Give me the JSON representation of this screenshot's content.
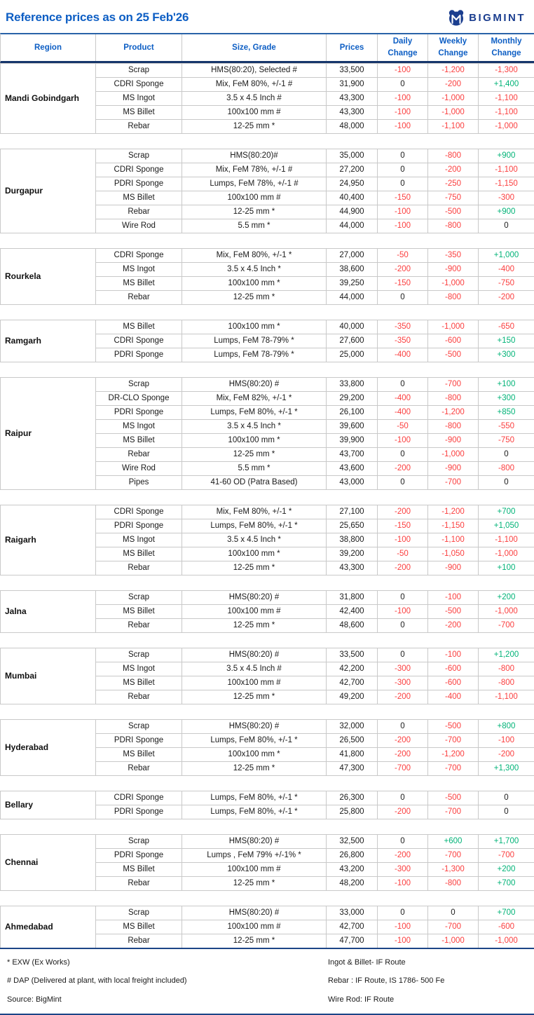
{
  "header": {
    "title": "Reference prices as on 25 Feb'26",
    "brand": "BIGMINT"
  },
  "colors": {
    "accent_blue": "#0d5ec4",
    "brand_navy": "#1b3e8f",
    "negative_red": "#fb3e3e",
    "positive_green": "#00b377",
    "thick_rule_blue": "#1c4587",
    "grid_line": "#c9c9c9"
  },
  "table": {
    "columns": [
      "Region",
      "Product",
      "Size, Grade",
      "Prices",
      "Daily Change",
      "Weekly Change",
      "Monthly Change"
    ],
    "regions": [
      {
        "name": "Mandi Gobindgarh",
        "rows": [
          {
            "product": "Scrap",
            "size": "HMS(80:20), Selected #",
            "price": "33,500",
            "daily": "-100",
            "weekly": "-1,200",
            "monthly": "-1,300"
          },
          {
            "product": "CDRI Sponge",
            "size": "Mix, FeM 80%, +/-1 #",
            "price": "31,900",
            "daily": "0",
            "weekly": "-200",
            "monthly": "+1,400"
          },
          {
            "product": "MS Ingot",
            "size": "3.5 x 4.5 Inch #",
            "price": "43,300",
            "daily": "-100",
            "weekly": "-1,000",
            "monthly": "-1,100"
          },
          {
            "product": "MS Billet",
            "size": "100x100 mm #",
            "price": "43,300",
            "daily": "-100",
            "weekly": "-1,000",
            "monthly": "-1,100"
          },
          {
            "product": "Rebar",
            "size": "12-25 mm *",
            "price": "48,000",
            "daily": "-100",
            "weekly": "-1,100",
            "monthly": "-1,000"
          }
        ]
      },
      {
        "name": "Durgapur",
        "rows": [
          {
            "product": "Scrap",
            "size": "HMS(80:20)#",
            "price": "35,000",
            "daily": "0",
            "weekly": "-800",
            "monthly": "+900"
          },
          {
            "product": "CDRI Sponge",
            "size": "Mix, FeM 78%, +/-1 #",
            "price": "27,200",
            "daily": "0",
            "weekly": "-200",
            "monthly": "-1,100"
          },
          {
            "product": "PDRI Sponge",
            "size": "Lumps, FeM 78%, +/-1 #",
            "price": "24,950",
            "daily": "0",
            "weekly": "-250",
            "monthly": "-1,150"
          },
          {
            "product": "MS Billet",
            "size": "100x100 mm #",
            "price": "40,400",
            "daily": "-150",
            "weekly": "-750",
            "monthly": "-300"
          },
          {
            "product": "Rebar",
            "size": "12-25 mm *",
            "price": "44,900",
            "daily": "-100",
            "weekly": "-500",
            "monthly": "+900"
          },
          {
            "product": "Wire Rod",
            "size": "5.5 mm *",
            "price": "44,000",
            "daily": "-100",
            "weekly": "-800",
            "monthly": "0"
          }
        ]
      },
      {
        "name": "Rourkela",
        "rows": [
          {
            "product": "CDRI Sponge",
            "size": "Mix, FeM 80%, +/-1 *",
            "price": "27,000",
            "daily": "-50",
            "weekly": "-350",
            "monthly": "+1,000"
          },
          {
            "product": "MS Ingot",
            "size": "3.5 x 4.5 Inch *",
            "price": "38,600",
            "daily": "-200",
            "weekly": "-900",
            "monthly": "-400"
          },
          {
            "product": "MS Billet",
            "size": "100x100 mm *",
            "price": "39,250",
            "daily": "-150",
            "weekly": "-1,000",
            "monthly": "-750"
          },
          {
            "product": "Rebar",
            "size": "12-25 mm *",
            "price": "44,000",
            "daily": "0",
            "weekly": "-800",
            "monthly": "-200"
          }
        ]
      },
      {
        "name": "Ramgarh",
        "rows": [
          {
            "product": "MS Billet",
            "size": "100x100 mm *",
            "price": "40,000",
            "daily": "-350",
            "weekly": "-1,000",
            "monthly": "-650"
          },
          {
            "product": "CDRI Sponge",
            "size": "Lumps, FeM 78-79% *",
            "price": "27,600",
            "daily": "-350",
            "weekly": "-600",
            "monthly": "+150"
          },
          {
            "product": "PDRI Sponge",
            "size": "Lumps, FeM 78-79% *",
            "price": "25,000",
            "daily": "-400",
            "weekly": "-500",
            "monthly": "+300"
          }
        ]
      },
      {
        "name": "Raipur",
        "rows": [
          {
            "product": "Scrap",
            "size": "HMS(80:20) #",
            "price": "33,800",
            "daily": "0",
            "weekly": "-700",
            "monthly": "+100"
          },
          {
            "product": "DR-CLO Sponge",
            "size": "Mix, FeM 82%, +/-1 *",
            "price": "29,200",
            "daily": "-400",
            "weekly": "-800",
            "monthly": "+300"
          },
          {
            "product": "PDRI Sponge",
            "size": "Lumps, FeM 80%, +/-1 *",
            "price": "26,100",
            "daily": "-400",
            "weekly": "-1,200",
            "monthly": "+850"
          },
          {
            "product": "MS Ingot",
            "size": "3.5 x 4.5 Inch *",
            "price": "39,600",
            "daily": "-50",
            "weekly": "-800",
            "monthly": "-550"
          },
          {
            "product": "MS Billet",
            "size": "100x100 mm *",
            "price": "39,900",
            "daily": "-100",
            "weekly": "-900",
            "monthly": "-750"
          },
          {
            "product": "Rebar",
            "size": "12-25 mm *",
            "price": "43,700",
            "daily": "0",
            "weekly": "-1,000",
            "monthly": "0"
          },
          {
            "product": "Wire Rod",
            "size": "5.5 mm *",
            "price": "43,600",
            "daily": "-200",
            "weekly": "-900",
            "monthly": "-800"
          },
          {
            "product": "Pipes",
            "size": "41-60 OD (Patra Based)",
            "price": "43,000",
            "daily": "0",
            "weekly": "-700",
            "monthly": "0"
          }
        ]
      },
      {
        "name": "Raigarh",
        "rows": [
          {
            "product": "CDRI Sponge",
            "size": "Mix, FeM 80%, +/-1 *",
            "price": "27,100",
            "daily": "-200",
            "weekly": "-1,200",
            "monthly": "+700"
          },
          {
            "product": "PDRI Sponge",
            "size": "Lumps, FeM 80%, +/-1 *",
            "price": "25,650",
            "daily": "-150",
            "weekly": "-1,150",
            "monthly": "+1,050"
          },
          {
            "product": "MS Ingot",
            "size": "3.5 x 4.5 Inch *",
            "price": "38,800",
            "daily": "-100",
            "weekly": "-1,100",
            "monthly": "-1,100"
          },
          {
            "product": "MS Billet",
            "size": "100x100 mm *",
            "price": "39,200",
            "daily": "-50",
            "weekly": "-1,050",
            "monthly": "-1,000"
          },
          {
            "product": "Rebar",
            "size": "12-25 mm *",
            "price": "43,300",
            "daily": "-200",
            "weekly": "-900",
            "monthly": "+100"
          }
        ]
      },
      {
        "name": "Jalna",
        "rows": [
          {
            "product": "Scrap",
            "size": "HMS(80:20) #",
            "price": "31,800",
            "daily": "0",
            "weekly": "-100",
            "monthly": "+200"
          },
          {
            "product": "MS Billet",
            "size": "100x100 mm #",
            "price": "42,400",
            "daily": "-100",
            "weekly": "-500",
            "monthly": "-1,000"
          },
          {
            "product": "Rebar",
            "size": "12-25 mm *",
            "price": "48,600",
            "daily": "0",
            "weekly": "-200",
            "monthly": "-700"
          }
        ]
      },
      {
        "name": "Mumbai",
        "rows": [
          {
            "product": "Scrap",
            "size": "HMS(80:20) #",
            "price": "33,500",
            "daily": "0",
            "weekly": "-100",
            "monthly": "+1,200"
          },
          {
            "product": "MS Ingot",
            "size": "3.5 x 4.5 Inch #",
            "price": "42,200",
            "daily": "-300",
            "weekly": "-600",
            "monthly": "-800"
          },
          {
            "product": "MS Billet",
            "size": "100x100 mm #",
            "price": "42,700",
            "daily": "-300",
            "weekly": "-600",
            "monthly": "-800"
          },
          {
            "product": "Rebar",
            "size": "12-25 mm *",
            "price": "49,200",
            "daily": "-200",
            "weekly": "-400",
            "monthly": "-1,100"
          }
        ]
      },
      {
        "name": "Hyderabad",
        "rows": [
          {
            "product": "Scrap",
            "size": "HMS(80:20) #",
            "price": "32,000",
            "daily": "0",
            "weekly": "-500",
            "monthly": "+800"
          },
          {
            "product": "PDRI Sponge",
            "size": "Lumps, FeM 80%, +/-1 *",
            "price": "26,500",
            "daily": "-200",
            "weekly": "-700",
            "monthly": "-100"
          },
          {
            "product": "MS Billet",
            "size": "100x100 mm *",
            "price": "41,800",
            "daily": "-200",
            "weekly": "-1,200",
            "monthly": "-200"
          },
          {
            "product": "Rebar",
            "size": "12-25 mm *",
            "price": "47,300",
            "daily": "-700",
            "weekly": "-700",
            "monthly": "+1,300"
          }
        ]
      },
      {
        "name": "Bellary",
        "rows": [
          {
            "product": "CDRI Sponge",
            "size": "Lumps, FeM 80%, +/-1 *",
            "price": "26,300",
            "daily": "0",
            "weekly": "-500",
            "monthly": "0"
          },
          {
            "product": "PDRI Sponge",
            "size": "Lumps, FeM 80%, +/-1 *",
            "price": "25,800",
            "daily": "-200",
            "weekly": "-700",
            "monthly": "0"
          }
        ]
      },
      {
        "name": "Chennai",
        "rows": [
          {
            "product": "Scrap",
            "size": "HMS(80:20) #",
            "price": "32,500",
            "daily": "0",
            "weekly": "+600",
            "monthly": "+1,700"
          },
          {
            "product": "PDRI Sponge",
            "size": "Lumps , FeM 79% +/-1% *",
            "price": "26,800",
            "daily": "-200",
            "weekly": "-700",
            "monthly": "-700"
          },
          {
            "product": "MS Billet",
            "size": "100x100 mm #",
            "price": "43,200",
            "daily": "-300",
            "weekly": "-1,300",
            "monthly": "+200"
          },
          {
            "product": "Rebar",
            "size": "12-25 mm *",
            "price": "48,200",
            "daily": "-100",
            "weekly": "-800",
            "monthly": "+700"
          }
        ]
      },
      {
        "name": "Ahmedabad",
        "rows": [
          {
            "product": "Scrap",
            "size": "HMS(80:20) #",
            "price": "33,000",
            "daily": "0",
            "weekly": "0",
            "monthly": "+700"
          },
          {
            "product": "MS Billet",
            "size": "100x100 mm #",
            "price": "42,700",
            "daily": "-100",
            "weekly": "-700",
            "monthly": "-600"
          },
          {
            "product": "Rebar",
            "size": "12-25 mm *",
            "price": "47,700",
            "daily": "-100",
            "weekly": "-1,000",
            "monthly": "-1,000"
          }
        ]
      }
    ]
  },
  "footer": {
    "left": [
      "* EXW (Ex Works)",
      "# DAP (Delivered at plant, with local freight included)",
      "Source: BigMint"
    ],
    "right": [
      "Ingot & Billet- IF Route",
      "Rebar : IF Route, IS 1786- 500 Fe",
      "Wire Rod: IF Route"
    ]
  }
}
